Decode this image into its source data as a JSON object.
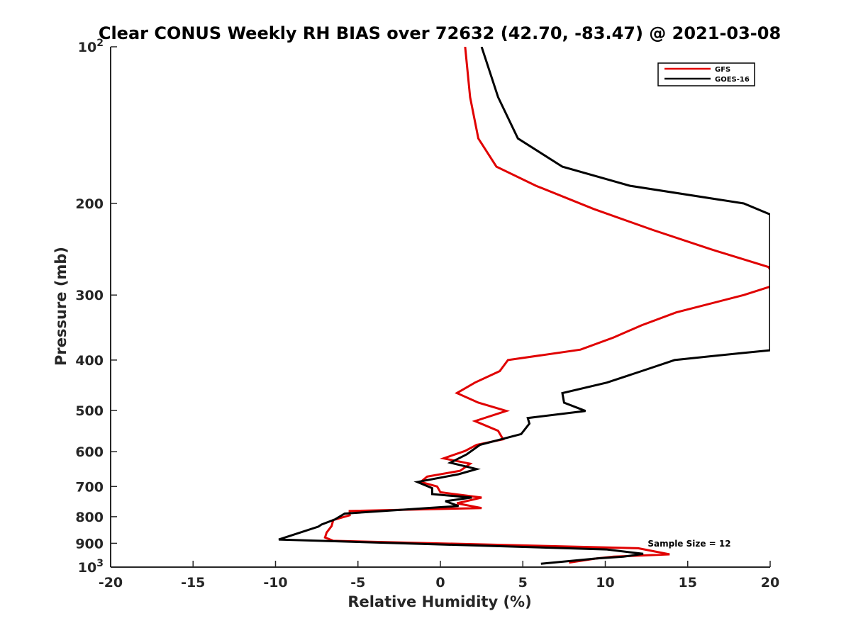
{
  "chart_data": {
    "type": "line",
    "title": "Clear CONUS Weekly RH BIAS over 72632 (42.70, -83.47) @ 2021-03-08",
    "xlabel": "Relative Humidity (%)",
    "ylabel": "Pressure (mb)",
    "xlim": [
      -20,
      20
    ],
    "ylim": [
      100,
      1000
    ],
    "y_scale": "log",
    "y_reversed": true,
    "grid": false,
    "legend_position": "top-right",
    "x_ticks": [
      "-20",
      "-15",
      "-10",
      "-5",
      "0",
      "5",
      "10",
      "15",
      "20"
    ],
    "y_ticks": [
      {
        "value": 100,
        "label": "10",
        "sup": "2"
      },
      {
        "value": 200,
        "label": "200",
        "sup": ""
      },
      {
        "value": 300,
        "label": "300",
        "sup": ""
      },
      {
        "value": 400,
        "label": "400",
        "sup": ""
      },
      {
        "value": 500,
        "label": "500",
        "sup": ""
      },
      {
        "value": 600,
        "label": "600",
        "sup": ""
      },
      {
        "value": 700,
        "label": "700",
        "sup": ""
      },
      {
        "value": 800,
        "label": "800",
        "sup": ""
      },
      {
        "value": 900,
        "label": "900",
        "sup": ""
      },
      {
        "value": 1000,
        "label": "10",
        "sup": "3"
      }
    ],
    "annotation": "Sample Size = 12",
    "series": [
      {
        "name": "GFS",
        "color": "#e00000",
        "points": [
          [
            1.5,
            100
          ],
          [
            1.8,
            125
          ],
          [
            2.3,
            150
          ],
          [
            3.4,
            170
          ],
          [
            5.8,
            185
          ],
          [
            9.3,
            205
          ],
          [
            12.9,
            225
          ],
          [
            16.4,
            245
          ],
          [
            19.9,
            265
          ],
          [
            20.0,
            268
          ],
          [
            20.0,
            289
          ],
          [
            18.4,
            300
          ],
          [
            14.3,
            324
          ],
          [
            12.2,
            343
          ],
          [
            10.5,
            362
          ],
          [
            8.5,
            382
          ],
          [
            4.1,
            400
          ],
          [
            3.6,
            420
          ],
          [
            2.1,
            442
          ],
          [
            1.0,
            463
          ],
          [
            2.3,
            483
          ],
          [
            4.0,
            501
          ],
          [
            2.1,
            524
          ],
          [
            3.5,
            547
          ],
          [
            3.8,
            568
          ],
          [
            2.2,
            582
          ],
          [
            1.5,
            598
          ],
          [
            0.2,
            618
          ],
          [
            1.8,
            633
          ],
          [
            1.2,
            653
          ],
          [
            -0.8,
            670
          ],
          [
            -1.2,
            686
          ],
          [
            -0.2,
            700
          ],
          [
            0.0,
            718
          ],
          [
            2.5,
            735
          ],
          [
            1.0,
            754
          ],
          [
            2.5,
            770
          ],
          [
            -5.5,
            780
          ],
          [
            -5.5,
            795
          ],
          [
            -6.5,
            812
          ],
          [
            -6.6,
            834
          ],
          [
            -6.9,
            858
          ],
          [
            -7.0,
            877
          ],
          [
            -6.5,
            890
          ],
          [
            12.0,
            920
          ],
          [
            13.9,
            945
          ],
          [
            10.5,
            955
          ],
          [
            9.5,
            962
          ],
          [
            7.8,
            980
          ]
        ]
      },
      {
        "name": "GOES-16",
        "color": "#000000",
        "points": [
          [
            2.5,
            100
          ],
          [
            3.5,
            125
          ],
          [
            4.7,
            150
          ],
          [
            7.4,
            170
          ],
          [
            11.5,
            185
          ],
          [
            18.4,
            200
          ],
          [
            20.0,
            210
          ],
          [
            20.0,
            383
          ],
          [
            18.2,
            388
          ],
          [
            14.2,
            400
          ],
          [
            12.2,
            420
          ],
          [
            10.1,
            442
          ],
          [
            7.4,
            463
          ],
          [
            7.5,
            483
          ],
          [
            8.8,
            501
          ],
          [
            5.3,
            517
          ],
          [
            5.4,
            530
          ],
          [
            4.9,
            555
          ],
          [
            2.4,
            582
          ],
          [
            1.6,
            607
          ],
          [
            0.6,
            630
          ],
          [
            2.2,
            648
          ],
          [
            1.1,
            663
          ],
          [
            -1.4,
            686
          ],
          [
            -0.5,
            705
          ],
          [
            -0.5,
            724
          ],
          [
            1.9,
            735
          ],
          [
            0.3,
            747
          ],
          [
            1.1,
            763
          ],
          [
            -5.8,
            789
          ],
          [
            -6.4,
            810
          ],
          [
            -7.2,
            828
          ],
          [
            -7.4,
            836
          ],
          [
            -9.8,
            885
          ],
          [
            10.1,
            925
          ],
          [
            12.3,
            943
          ],
          [
            11.1,
            955
          ],
          [
            9.5,
            962
          ],
          [
            6.1,
            985
          ]
        ]
      }
    ]
  }
}
